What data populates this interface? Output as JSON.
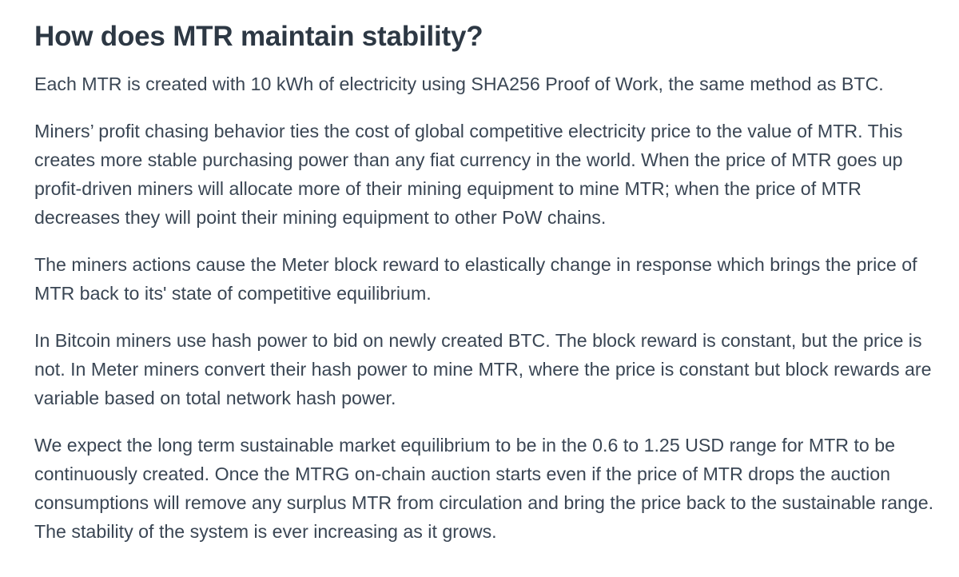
{
  "article": {
    "title": "How does MTR maintain stability?",
    "paragraphs": [
      "Each MTR is created with 10 kWh of electricity using SHA256 Proof of Work, the same method as BTC.",
      "Miners’ profit chasing behavior ties the cost of global competitive electricity price to the value of MTR. This creates more stable purchasing power than any fiat currency in the world. When the price of MTR goes up profit-driven miners will allocate more of their mining equipment to mine MTR; when the price of MTR decreases they will point their mining equipment to other PoW chains.",
      "The miners actions cause the Meter block reward to elastically change in response which brings the price of MTR back to its' state of competitive equilibrium.",
      "In Bitcoin miners use hash power to bid on newly created BTC. The block reward is constant, but the price is not. In Meter miners convert their hash power to mine MTR, where the price is constant but block rewards are variable based on total network hash power.",
      "We expect the long term sustainable market equilibrium to be in the 0.6 to 1.25 USD range for MTR to be continuously created. Once the MTRG on-chain auction starts even if the price of MTR drops the auction consumptions will remove any surplus MTR from circulation and bring the price back to the sustainable range. The stability of the system is ever increasing as it grows."
    ]
  }
}
